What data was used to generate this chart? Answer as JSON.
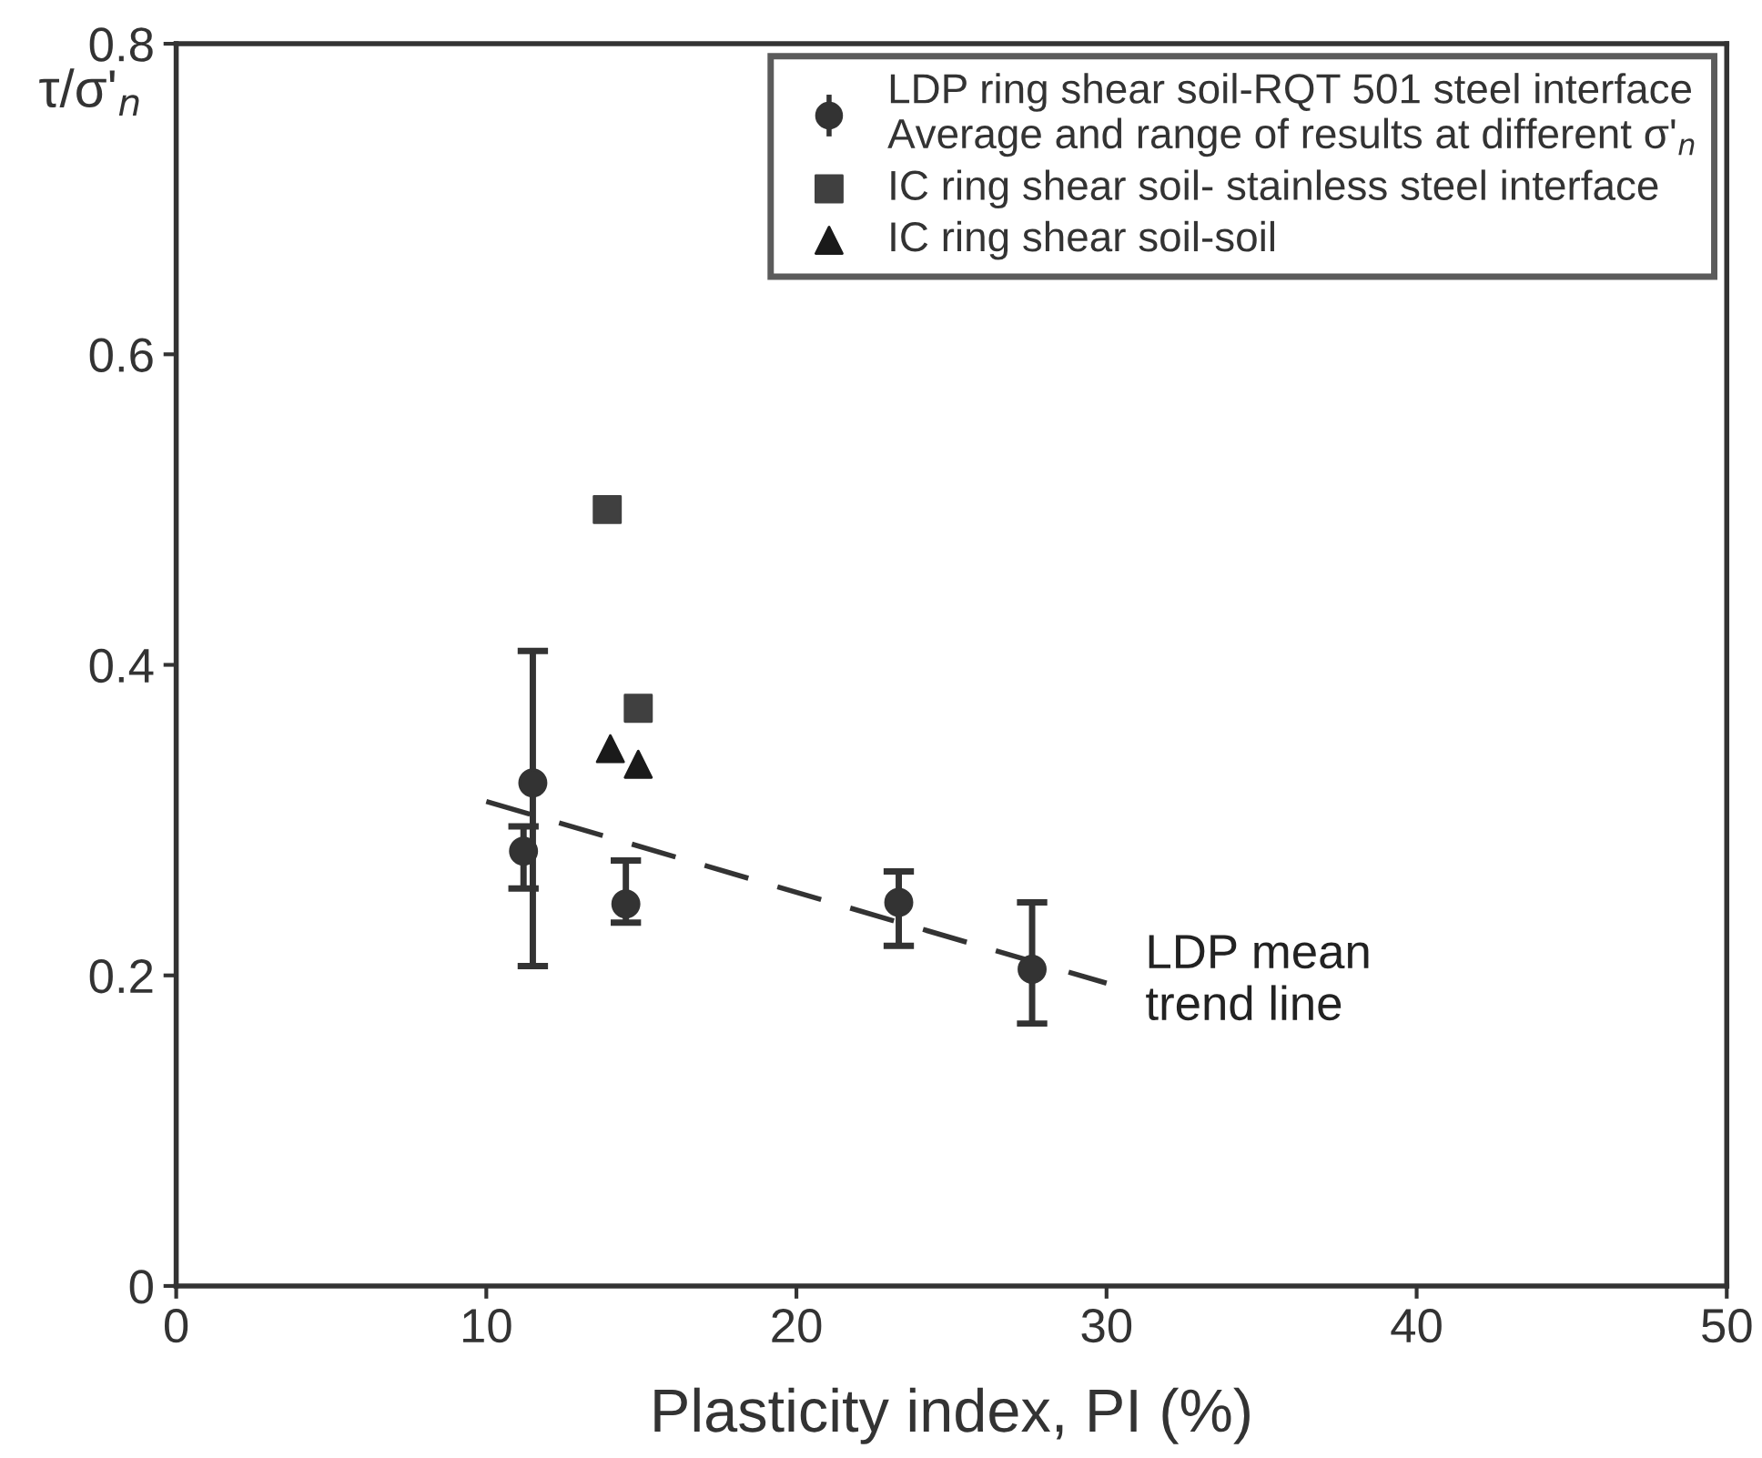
{
  "chart_data": {
    "type": "scatter",
    "xlabel": "Plasticity index, PI (%)",
    "ylabel": "τ/σ'$_{n}$",
    "xlim": [
      0,
      50
    ],
    "xticks": [
      0,
      10,
      20,
      30,
      40,
      50
    ],
    "ylim": [
      0,
      0.8
    ],
    "yticks": [
      0,
      0.2,
      0.4,
      0.6,
      0.8
    ],
    "grid": false,
    "legend": "top right",
    "series": [
      {
        "name": "LDP ring shear soil-RQT 501 steel interface\nAverage and range of results at different σ'$_{n}$",
        "marker": "circle",
        "color": "#333333",
        "x": [
          11.5,
          11.2,
          14.5,
          23.3,
          27.6
        ],
        "values": [
          0.324,
          0.28,
          0.246,
          0.247,
          0.204
        ],
        "errors": [
          [
            0.206,
            0.409
          ],
          [
            0.256,
            0.296
          ],
          [
            0.234,
            0.274
          ],
          [
            0.219,
            0.267
          ],
          [
            0.169,
            0.247
          ]
        ]
      },
      {
        "name": "IC ring shear soil- stainless steel interface",
        "marker": "square",
        "color": "#404040",
        "x": [
          13.9,
          14.9
        ],
        "values": [
          0.5,
          0.372
        ]
      },
      {
        "name": "IC ring shear soil-soil",
        "marker": "triangle",
        "color": "#1a1a1a",
        "x": [
          14.0,
          14.9
        ],
        "values": [
          0.346,
          0.336
        ]
      },
      {
        "type": "line",
        "line_style": "dashed",
        "marker": "none",
        "color": "#333333",
        "x": [
          10,
          30
        ],
        "values": [
          0.312,
          0.195
        ]
      }
    ],
    "annotations": [
      "LDP mean\ntrend line"
    ]
  }
}
